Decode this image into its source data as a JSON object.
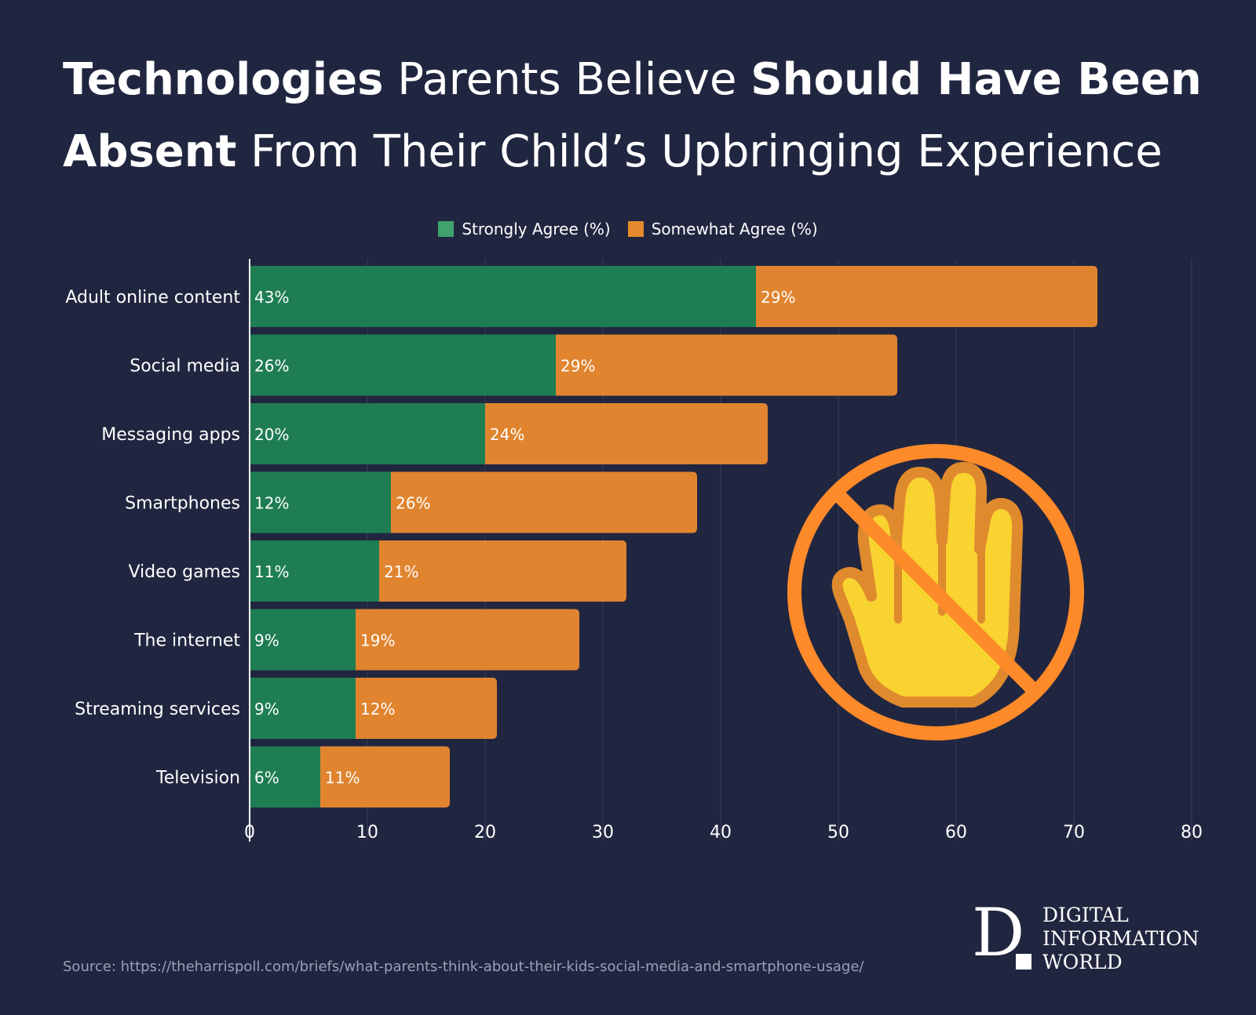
{
  "title": {
    "part1_bold": "Technologies",
    "part2": " Parents Believe ",
    "part3_bold": "Should Have Been Absent",
    "part4": " From Their Child’s Upbringing Experience"
  },
  "legend": {
    "items": [
      {
        "label": "Strongly Agree (%)",
        "color": "#3fa26f"
      },
      {
        "label": "Somewhat Agree (%)",
        "color": "#e58a2e"
      }
    ]
  },
  "chart_data": {
    "type": "bar",
    "orientation": "horizontal",
    "stacked": true,
    "categories": [
      "Adult online content",
      "Social media",
      "Messaging apps",
      "Smartphones",
      "Video games",
      "The internet",
      "Streaming services",
      "Television"
    ],
    "series": [
      {
        "name": "Strongly Agree (%)",
        "color": "#1f7d53",
        "values": [
          43,
          26,
          20,
          12,
          11,
          9,
          9,
          6
        ],
        "labels": [
          "43%",
          "26%",
          "20%",
          "12%",
          "11%",
          "9%",
          "9%",
          "6%"
        ]
      },
      {
        "name": "Somewhat Agree (%)",
        "color": "#e0842f",
        "values": [
          29,
          29,
          24,
          26,
          21,
          19,
          12,
          11
        ],
        "labels": [
          "29%",
          "29%",
          "24%",
          "26%",
          "21%",
          "19%",
          "12%",
          "11%"
        ]
      }
    ],
    "xlim": [
      0,
      80
    ],
    "xticks": [
      "0",
      "10",
      "20",
      "30",
      "40",
      "50",
      "60",
      "70",
      "80"
    ],
    "grid": true,
    "legend_position": "top-center"
  },
  "icon": {
    "name": "no-hand-stop-icon",
    "circle_color": "#ff8a2a",
    "hand_color": "#f9d330",
    "hand_outline": "#e08a2e"
  },
  "source": "Source: https://theharrispoll.com/briefs/what-parents-think-about-their-kids-social-media-and-smartphone-usage/",
  "logo": {
    "letter": "D",
    "lines": [
      "DIGITAL",
      "INFORMATION",
      "WORLD"
    ]
  }
}
